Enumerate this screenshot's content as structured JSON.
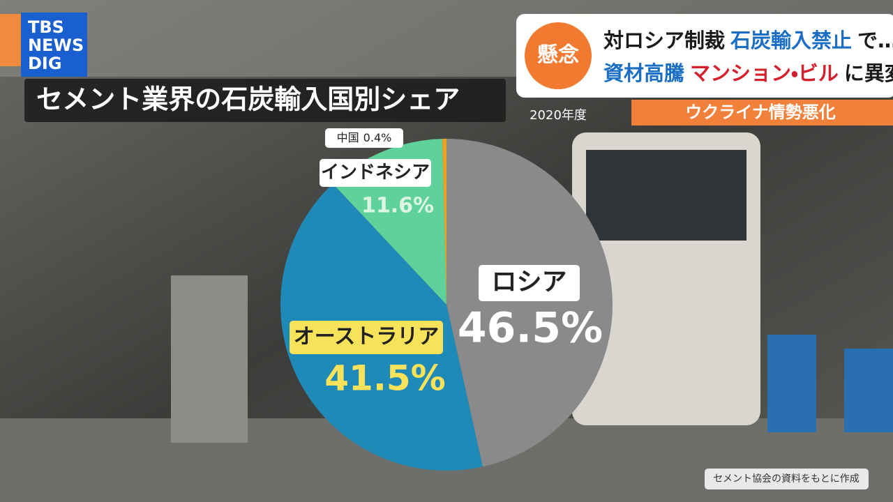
{
  "logo": {
    "lines": [
      "TBS",
      "NEWS",
      "DIG"
    ]
  },
  "headline": {
    "badge": "懸念",
    "line1": [
      {
        "text": "対ロシア制裁",
        "color": "#1a1a1a"
      },
      {
        "text": "石炭輸入禁止",
        "color": "#1a6fc4"
      },
      {
        "text": "で…",
        "color": "#1a1a1a"
      }
    ],
    "line2": [
      {
        "text": "資材高騰",
        "color": "#1a6fc4"
      },
      {
        "text": "マンション・ビル",
        "color": "#d4202a"
      },
      {
        "text": "に異変",
        "color": "#1a1a1a"
      }
    ],
    "topic": "ウクライナ情勢悪化"
  },
  "chart_data": {
    "type": "pie",
    "title": "セメント業界の石炭輸入国別シェア",
    "subtitle": "2020年度",
    "categories": [
      "ロシア",
      "オーストラリア",
      "インドネシア",
      "中国"
    ],
    "values": [
      46.5,
      41.5,
      11.6,
      0.4
    ],
    "value_labels": [
      "46.5%",
      "41.5%",
      "11.6%",
      "0.4%"
    ],
    "colors": [
      "#8a8a8a",
      "#1f8ab8",
      "#5fd19a",
      "#f0a21e"
    ]
  },
  "source": "セメント協会の資料をもとに作成"
}
